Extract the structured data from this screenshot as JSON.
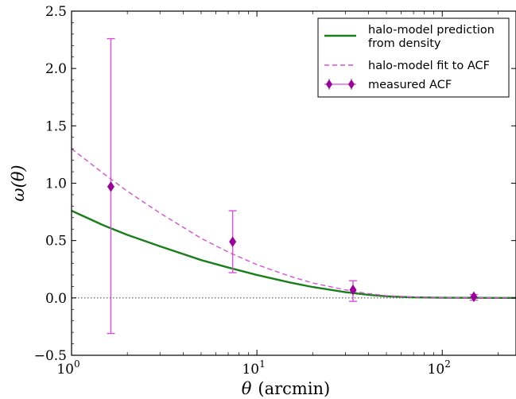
{
  "chart_data": {
    "type": "line",
    "xlabel_symbol": "θ",
    "xlabel_unit": "(arcmin)",
    "ylabel": "ω(θ)",
    "xscale": "log",
    "xlim": [
      1,
      250
    ],
    "ylim": [
      -0.5,
      2.5
    ],
    "x_ticks": [
      {
        "value": 1,
        "base": "10",
        "exp": "0"
      },
      {
        "value": 10,
        "base": "10",
        "exp": "1"
      },
      {
        "value": 100,
        "base": "10",
        "exp": "2"
      }
    ],
    "y_ticks": [
      {
        "value": -0.5,
        "label": "−0.5"
      },
      {
        "value": 0.0,
        "label": "0.0"
      },
      {
        "value": 0.5,
        "label": "0.5"
      },
      {
        "value": 1.0,
        "label": "1.0"
      },
      {
        "value": 1.5,
        "label": "1.5"
      },
      {
        "value": 2.0,
        "label": "2.0"
      },
      {
        "value": 2.5,
        "label": "2.5"
      }
    ],
    "zero_line": {
      "y": 0,
      "style": "dotted"
    },
    "legend_position": "top-right",
    "series": [
      {
        "name_lines": [
          "halo-model prediction",
          "from density"
        ],
        "kind": "line",
        "color": "#1a7f1a",
        "points": [
          [
            1,
            0.76
          ],
          [
            1.5,
            0.63
          ],
          [
            2,
            0.55
          ],
          [
            3,
            0.45
          ],
          [
            5,
            0.33
          ],
          [
            7,
            0.265
          ],
          [
            10,
            0.2
          ],
          [
            15,
            0.135
          ],
          [
            20,
            0.095
          ],
          [
            30,
            0.05
          ],
          [
            40,
            0.027
          ],
          [
            50,
            0.014
          ],
          [
            70,
            0.005
          ],
          [
            100,
            0.002
          ],
          [
            150,
            0.001
          ],
          [
            250,
            0.0
          ]
        ]
      },
      {
        "name_lines": [
          "halo-model fit to ACF"
        ],
        "kind": "dashed",
        "color": "#d94fd9",
        "points": [
          [
            1,
            1.3
          ],
          [
            1.5,
            1.08
          ],
          [
            2,
            0.93
          ],
          [
            3,
            0.74
          ],
          [
            5,
            0.52
          ],
          [
            7,
            0.4
          ],
          [
            10,
            0.29
          ],
          [
            15,
            0.19
          ],
          [
            20,
            0.13
          ],
          [
            30,
            0.07
          ],
          [
            40,
            0.037
          ],
          [
            50,
            0.02
          ],
          [
            70,
            0.008
          ],
          [
            100,
            0.003
          ],
          [
            150,
            0.001
          ],
          [
            250,
            0.0
          ]
        ]
      },
      {
        "name_lines": [
          "measured ACF"
        ],
        "kind": "errorbar",
        "color": "#9b009b",
        "errcolor": "#d94fd9",
        "points": [
          {
            "x": 1.63,
            "y": 0.97,
            "lo": -0.31,
            "hi": 2.26
          },
          {
            "x": 7.4,
            "y": 0.49,
            "lo": 0.22,
            "hi": 0.76
          },
          {
            "x": 33,
            "y": 0.07,
            "lo": -0.03,
            "hi": 0.15
          },
          {
            "x": 148,
            "y": 0.01,
            "lo": -0.02,
            "hi": 0.03
          }
        ]
      }
    ]
  }
}
